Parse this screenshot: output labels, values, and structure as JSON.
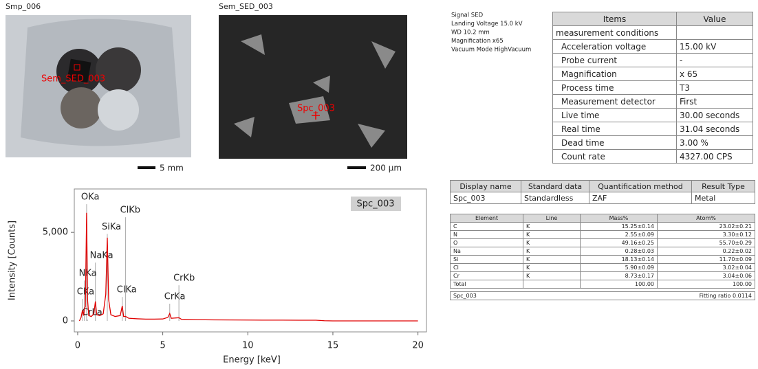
{
  "sample_image": {
    "title": "Smp_006",
    "marker_label": "Sem_SED_003",
    "scale": "5 mm"
  },
  "sem_image": {
    "title": "Sem_SED_003",
    "marker_label": "Spc_003",
    "scale": "200 µm"
  },
  "signal_info": [
    "Signal SED",
    "Landing Voltage 15.0 kV",
    "WD 10.2 mm",
    "Magnification x65",
    "Vacuum Mode HighVacuum"
  ],
  "conditions_table": {
    "header": [
      "Items",
      "Value"
    ],
    "rows": [
      [
        "measurement conditions"
      ],
      [
        "Acceleration voltage",
        "15.00 kV"
      ],
      [
        "Probe current",
        "-"
      ],
      [
        "Magnification",
        "x 65"
      ],
      [
        "Process time",
        "T3"
      ],
      [
        "Measurement detector",
        "First"
      ],
      [
        "Live time",
        "30.00 seconds"
      ],
      [
        "Real time",
        "31.04 seconds"
      ],
      [
        "Dead time",
        "3.00 %"
      ],
      [
        "Count rate",
        "4327.00 CPS"
      ]
    ]
  },
  "result_table": {
    "header": [
      "Display name",
      "Standard data",
      "Quantification method",
      "Result Type"
    ],
    "rows": [
      [
        "Spc_003",
        "Standardless",
        "ZAF",
        "Metal"
      ]
    ]
  },
  "element_table": {
    "header": [
      "Element",
      "Line",
      "Mass%",
      "Atom%"
    ],
    "rows": [
      [
        "C",
        "K",
        "15.25±0.14",
        "23.02±0.21"
      ],
      [
        "N",
        "K",
        "2.55±0.09",
        "3.30±0.12"
      ],
      [
        "O",
        "K",
        "49.16±0.25",
        "55.70±0.29"
      ],
      [
        "Na",
        "K",
        "0.28±0.03",
        "0.22±0.02"
      ],
      [
        "Si",
        "K",
        "18.13±0.14",
        "11.70±0.09"
      ],
      [
        "Cl",
        "K",
        "5.90±0.09",
        "3.02±0.04"
      ],
      [
        "Cr",
        "K",
        "8.73±0.17",
        "3.04±0.06"
      ]
    ],
    "total": {
      "label": "Total",
      "mass": "100.00",
      "atom": "100.00"
    },
    "footer": [
      "Spc_003",
      "Fitting ratio 0.0114"
    ]
  },
  "chart_data": {
    "type": "line",
    "x_label": "Energy [keV]",
    "y_label": "Intensity [Counts]",
    "x": [
      0.1,
      0.2,
      0.28,
      0.35,
      0.39,
      0.45,
      0.525,
      0.58,
      0.65,
      0.8,
      0.95,
      1.04,
      1.12,
      1.3,
      1.5,
      1.65,
      1.74,
      1.82,
      1.95,
      2.2,
      2.5,
      2.62,
      2.7,
      2.82,
      3.0,
      3.5,
      4.0,
      4.5,
      5.0,
      5.3,
      5.41,
      5.5,
      5.95,
      6.1,
      7,
      8,
      9,
      10,
      11,
      12,
      13,
      14,
      14.5,
      15,
      20
    ],
    "series": [
      {
        "name": "Spc_003",
        "color": "#e00000",
        "values": [
          0,
          200,
          600,
          300,
          700,
          800,
          6100,
          1200,
          300,
          250,
          400,
          1100,
          350,
          300,
          400,
          1500,
          4700,
          1200,
          350,
          250,
          300,
          850,
          250,
          250,
          150,
          120,
          100,
          100,
          110,
          200,
          420,
          150,
          180,
          90,
          70,
          60,
          55,
          50,
          45,
          45,
          40,
          40,
          10,
          0,
          0
        ]
      }
    ],
    "xlim": [
      -0.2,
      20.5
    ],
    "ylim": [
      -620,
      7450
    ],
    "xticks": [
      0,
      5,
      10,
      15,
      20
    ],
    "yticks": [
      0,
      {
        "value": 5000,
        "label": "5,000"
      }
    ],
    "peaks": [
      {
        "label": "OKa",
        "energy": 0.525,
        "height": 6980
      },
      {
        "label": "ClKb",
        "energy": 2.815,
        "height": 6240
      },
      {
        "label": "SiKa",
        "energy": 1.74,
        "height": 5300
      },
      {
        "label": "NaKa",
        "energy": 1.04,
        "height": 3680
      },
      {
        "label": "NKa",
        "energy": 0.392,
        "height": 2670
      },
      {
        "label": "CKa",
        "energy": 0.277,
        "height": 1630
      },
      {
        "label": "CrLa",
        "energy": 0.573,
        "height": 465
      },
      {
        "label": "ClKa",
        "energy": 2.62,
        "height": 1740
      },
      {
        "label": "CrKa",
        "energy": 5.41,
        "height": 1360
      },
      {
        "label": "CrKb",
        "energy": 5.95,
        "height": 2400
      }
    ]
  }
}
